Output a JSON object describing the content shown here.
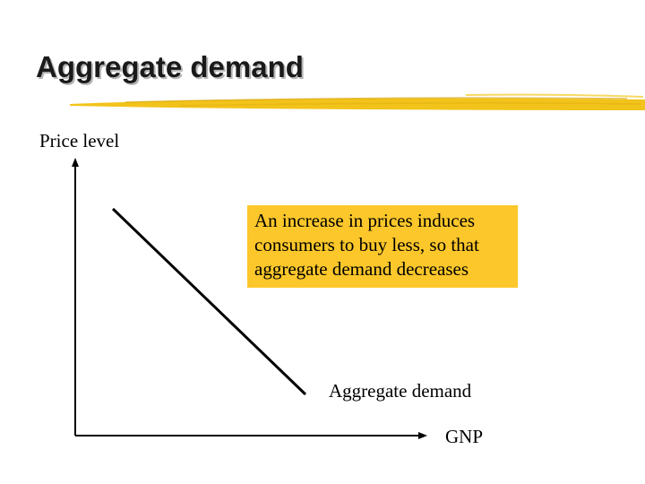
{
  "slide": {
    "title": "Aggregate demand",
    "accent_color": "#f2c31a",
    "callout_color": "#fcc72a"
  },
  "diagram": {
    "y_axis_label": "Price level",
    "x_axis_label": "GNP",
    "curve_label": "Aggregate demand",
    "curve_direction": "downward-sloping",
    "callout_text": "An increase in prices induces\nconsumers to buy less, so that\naggregate demand decreases"
  }
}
